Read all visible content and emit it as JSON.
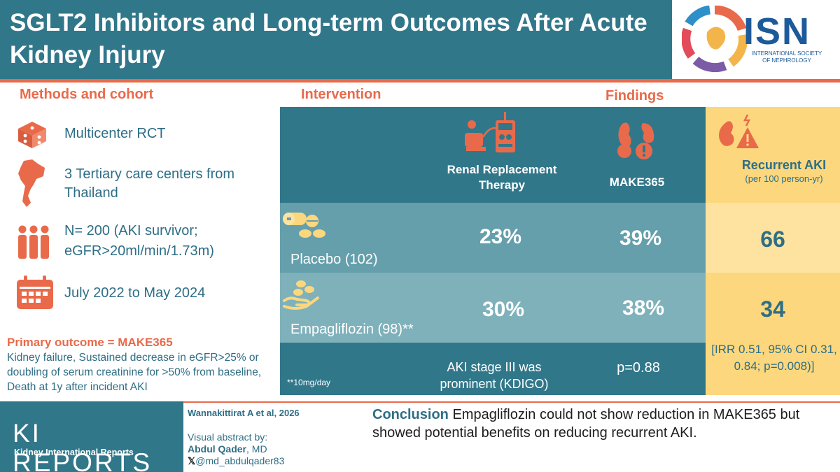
{
  "header": {
    "title": "SGLT2 Inhibitors and Long-term Outcomes After Acute Kidney Injury",
    "logo_text": "ISN",
    "logo_subtitle": "INTERNATIONAL SOCIETY OF NEPHROLOGY"
  },
  "methods": {
    "title": "Methods and cohort",
    "items": [
      {
        "icon": "dice-icon",
        "text": "Multicenter RCT"
      },
      {
        "icon": "thailand-map-icon",
        "text": "3 Tertiary care centers from Thailand"
      },
      {
        "icon": "people-icon",
        "text": "N= 200 (AKI survivor; eGFR>20ml/min/1.73m)"
      },
      {
        "icon": "calendar-icon",
        "text": "July 2022 to May 2024"
      }
    ]
  },
  "primary_outcome": {
    "title": "Primary outcome = MAKE365",
    "text": "Kidney failure, Sustained decrease in eGFR>25% or doubling of serum creatinine for >50% from baseline, Death at 1y after incident AKI"
  },
  "intervention": {
    "title": "Intervention"
  },
  "findings": {
    "title": "Findings",
    "columns": {
      "rrt": "Renal Replacement Therapy",
      "make": "MAKE365",
      "recurrent": "Recurrent AKI",
      "recurrent_unit": "(per 100 person-yr)"
    },
    "rows": [
      {
        "group": "Placebo (102)",
        "rrt": "23%",
        "make": "39%",
        "recurrent": "66"
      },
      {
        "group": "Empagliflozin (98)**",
        "rrt": "30%",
        "make": "38%",
        "recurrent": "34"
      }
    ],
    "footnote": "**10mg/day",
    "rrt_note": "AKI stage III was prominent (KDIGO)",
    "make_note": "p=0.88",
    "recurrent_note": "[IRR 0.51, 95% CI 0.31, 0.84; p=0.008)]"
  },
  "footer": {
    "journal_logo": "KI REPORTS",
    "journal_name": "Kidney International Reports",
    "citation": "Wannakittirat A et al, 2026",
    "abstract_label": "Visual abstract by:",
    "author": "Abdul Qader",
    "author_suffix": ", MD",
    "handle": "@md_abdulqader83",
    "conclusion_label": "Conclusion",
    "conclusion_text": "Empagliflozin could not show reduction in MAKE365 but showed potential benefits on reducing recurrent AKI."
  },
  "colors": {
    "teal": "#31778a",
    "orange": "#e96a4a",
    "yellow": "#fcd77d",
    "text_teal": "#2e6e86"
  }
}
